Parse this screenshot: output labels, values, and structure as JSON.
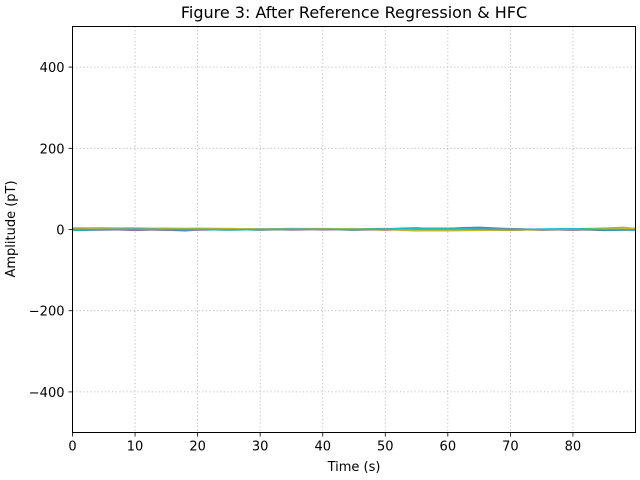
{
  "chart_data": {
    "type": "line",
    "title": "Figure 3: After Reference Regression & HFC",
    "xlabel": "Time (s)",
    "ylabel": "Amplitude (pT)",
    "xlim": [
      0,
      90
    ],
    "ylim": [
      -500,
      500
    ],
    "xticks": [
      0,
      10,
      20,
      30,
      40,
      50,
      60,
      70,
      80
    ],
    "xtick_labels": [
      "0",
      "10",
      "20",
      "30",
      "40",
      "50",
      "60",
      "70",
      "80"
    ],
    "yticks": [
      -400,
      -200,
      0,
      200,
      400
    ],
    "ytick_labels": [
      "−400",
      "−200",
      "0",
      "200",
      "400"
    ],
    "grid": true,
    "legend": "none",
    "series": [
      {
        "color": "#1f77b4",
        "x": [
          0,
          5,
          10,
          15,
          18,
          20,
          25,
          30,
          35,
          40,
          45,
          50,
          53,
          55,
          57,
          60,
          62,
          65,
          68,
          70,
          75,
          80,
          85,
          90
        ],
        "y": [
          -2,
          -1,
          0,
          -1,
          -3,
          -1,
          0,
          -1,
          1,
          0,
          -1,
          1,
          3,
          4,
          2,
          1,
          4,
          5,
          3,
          1,
          -1,
          0,
          -2,
          -1
        ]
      },
      {
        "color": "#ff7f0e",
        "x": [
          0,
          5,
          10,
          15,
          20,
          25,
          30,
          35,
          40,
          45,
          50,
          55,
          60,
          65,
          70,
          75,
          80,
          85,
          88,
          90
        ],
        "y": [
          3,
          4,
          2,
          3,
          1,
          2,
          1,
          2,
          2,
          1,
          0,
          -3,
          -2,
          -1,
          -2,
          0,
          1,
          3,
          5,
          2
        ]
      },
      {
        "color": "#2ca02c",
        "x": [
          0,
          5,
          10,
          15,
          20,
          25,
          30,
          35,
          40,
          45,
          50,
          55,
          60,
          65,
          70,
          75,
          80,
          85,
          90
        ],
        "y": [
          1,
          2,
          1,
          0,
          2,
          1,
          0,
          1,
          0,
          1,
          2,
          1,
          3,
          2,
          1,
          0,
          1,
          2,
          1
        ]
      },
      {
        "color": "#d62728",
        "x": [
          0,
          5,
          10,
          15,
          20,
          25,
          30,
          35,
          40,
          45,
          50,
          55,
          60,
          65,
          70,
          75,
          80,
          85,
          90
        ],
        "y": [
          0,
          1,
          0,
          -1,
          0,
          1,
          0,
          0,
          1,
          0,
          -1,
          0,
          1,
          0,
          -1,
          0,
          1,
          0,
          0
        ]
      },
      {
        "color": "#9467bd",
        "x": [
          0,
          5,
          10,
          15,
          20,
          25,
          30,
          35,
          40,
          45,
          50,
          55,
          60,
          65,
          70,
          75,
          80,
          85,
          90
        ],
        "y": [
          -1,
          0,
          -2,
          0,
          -1,
          0,
          1,
          -1,
          0,
          1,
          0,
          2,
          3,
          4,
          2,
          0,
          -1,
          0,
          -2
        ]
      },
      {
        "color": "#8c564b",
        "x": [
          0,
          5,
          10,
          15,
          20,
          25,
          30,
          35,
          40,
          45,
          50,
          55,
          60,
          65,
          70,
          75,
          80,
          85,
          90
        ],
        "y": [
          2,
          1,
          0,
          1,
          0,
          -1,
          0,
          1,
          0,
          -1,
          0,
          1,
          2,
          1,
          0,
          -1,
          0,
          1,
          0
        ]
      },
      {
        "color": "#e377c2",
        "x": [
          0,
          5,
          10,
          15,
          20,
          25,
          30,
          35,
          40,
          45,
          50,
          55,
          60,
          65,
          70,
          75,
          80,
          85,
          90
        ],
        "y": [
          0,
          -1,
          1,
          0,
          -1,
          0,
          0,
          1,
          -1,
          0,
          1,
          -2,
          -1,
          0,
          1,
          0,
          -1,
          1,
          0
        ]
      },
      {
        "color": "#7f7f7f",
        "x": [
          0,
          5,
          10,
          15,
          20,
          25,
          30,
          35,
          40,
          45,
          50,
          55,
          60,
          65,
          70,
          75,
          80,
          85,
          90
        ],
        "y": [
          1,
          0,
          0,
          -1,
          1,
          0,
          -1,
          0,
          1,
          0,
          0,
          3,
          2,
          3,
          1,
          0,
          -1,
          0,
          1
        ]
      },
      {
        "color": "#bcbd22",
        "x": [
          0,
          5,
          10,
          15,
          20,
          25,
          30,
          35,
          40,
          45,
          50,
          55,
          60,
          65,
          70,
          75,
          80,
          85,
          90
        ],
        "y": [
          4,
          3,
          4,
          2,
          3,
          2,
          1,
          2,
          1,
          2,
          0,
          -2,
          -3,
          -2,
          -1,
          0,
          1,
          2,
          3
        ]
      },
      {
        "color": "#17becf",
        "x": [
          0,
          5,
          10,
          15,
          20,
          25,
          30,
          35,
          40,
          45,
          50,
          55,
          60,
          65,
          70,
          75,
          80,
          85,
          90
        ],
        "y": [
          -1,
          0,
          1,
          0,
          0,
          -1,
          0,
          1,
          0,
          0,
          1,
          3,
          2,
          1,
          0,
          1,
          2,
          0,
          -1
        ]
      }
    ]
  }
}
